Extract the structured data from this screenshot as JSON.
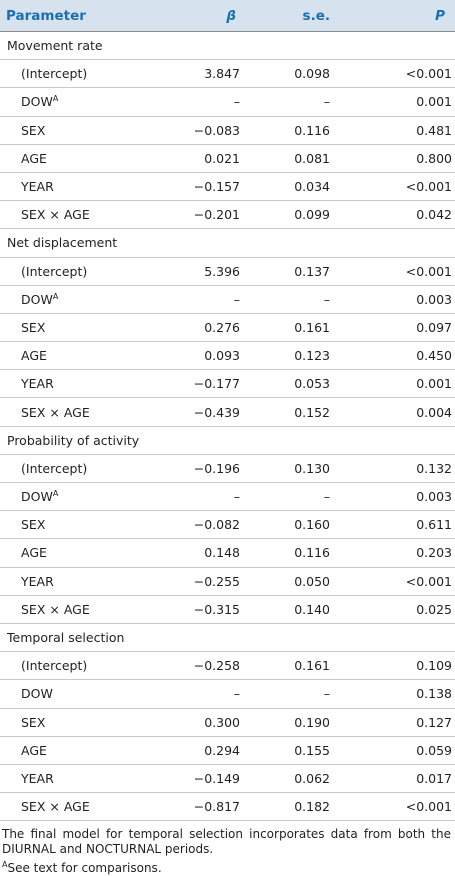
{
  "headers": {
    "parameter": "Parameter",
    "beta": "β",
    "se": "s.e.",
    "p": "P"
  },
  "sections": [
    {
      "title": "Movement rate",
      "rows": [
        {
          "label": "(Intercept)",
          "sup": "",
          "beta": "3.847",
          "se": "0.098",
          "p": "<0.001"
        },
        {
          "label": "DOW",
          "sup": "A",
          "beta": "–",
          "se": "–",
          "p": "0.001"
        },
        {
          "label": "SEX",
          "sup": "",
          "beta": "−0.083",
          "se": "0.116",
          "p": "0.481"
        },
        {
          "label": "AGE",
          "sup": "",
          "beta": "0.021",
          "se": "0.081",
          "p": "0.800"
        },
        {
          "label": "YEAR",
          "sup": "",
          "beta": "−0.157",
          "se": "0.034",
          "p": "<0.001"
        },
        {
          "label": "SEX × AGE",
          "sup": "",
          "beta": "−0.201",
          "se": "0.099",
          "p": "0.042"
        }
      ]
    },
    {
      "title": "Net displacement",
      "rows": [
        {
          "label": "(Intercept)",
          "sup": "",
          "beta": "5.396",
          "se": "0.137",
          "p": "<0.001"
        },
        {
          "label": "DOW",
          "sup": "A",
          "beta": "–",
          "se": "–",
          "p": "0.003"
        },
        {
          "label": "SEX",
          "sup": "",
          "beta": "0.276",
          "se": "0.161",
          "p": "0.097"
        },
        {
          "label": "AGE",
          "sup": "",
          "beta": "0.093",
          "se": "0.123",
          "p": "0.450"
        },
        {
          "label": "YEAR",
          "sup": "",
          "beta": "−0.177",
          "se": "0.053",
          "p": "0.001"
        },
        {
          "label": "SEX × AGE",
          "sup": "",
          "beta": "−0.439",
          "se": "0.152",
          "p": "0.004"
        }
      ]
    },
    {
      "title": "Probability of activity",
      "rows": [
        {
          "label": "(Intercept)",
          "sup": "",
          "beta": "−0.196",
          "se": "0.130",
          "p": "0.132"
        },
        {
          "label": "DOW",
          "sup": "A",
          "beta": "–",
          "se": "–",
          "p": "0.003"
        },
        {
          "label": "SEX",
          "sup": "",
          "beta": "−0.082",
          "se": "0.160",
          "p": "0.611"
        },
        {
          "label": "AGE",
          "sup": "",
          "beta": "0.148",
          "se": "0.116",
          "p": "0.203"
        },
        {
          "label": "YEAR",
          "sup": "",
          "beta": "−0.255",
          "se": "0.050",
          "p": "<0.001"
        },
        {
          "label": "SEX × AGE",
          "sup": "",
          "beta": "−0.315",
          "se": "0.140",
          "p": "0.025"
        }
      ]
    },
    {
      "title": "Temporal selection",
      "rows": [
        {
          "label": "(Intercept)",
          "sup": "",
          "beta": "−0.258",
          "se": "0.161",
          "p": "0.109"
        },
        {
          "label": "DOW",
          "sup": "",
          "beta": "–",
          "se": "–",
          "p": "0.138"
        },
        {
          "label": "SEX",
          "sup": "",
          "beta": "0.300",
          "se": "0.190",
          "p": "0.127"
        },
        {
          "label": "AGE",
          "sup": "",
          "beta": "0.294",
          "se": "0.155",
          "p": "0.059"
        },
        {
          "label": "YEAR",
          "sup": "",
          "beta": "−0.149",
          "se": "0.062",
          "p": "0.017"
        },
        {
          "label": "SEX × AGE",
          "sup": "",
          "beta": "−0.817",
          "se": "0.182",
          "p": "<0.001"
        }
      ]
    }
  ],
  "footnotes": {
    "main": "The final model for temporal selection incorporates data from both the DIURNAL and NOCTURNAL periods.",
    "a_marker": "A",
    "a_text": "See text for comparisons."
  },
  "colors": {
    "header_bg": "#d6e3ee",
    "header_text": "#1a6fb0"
  }
}
